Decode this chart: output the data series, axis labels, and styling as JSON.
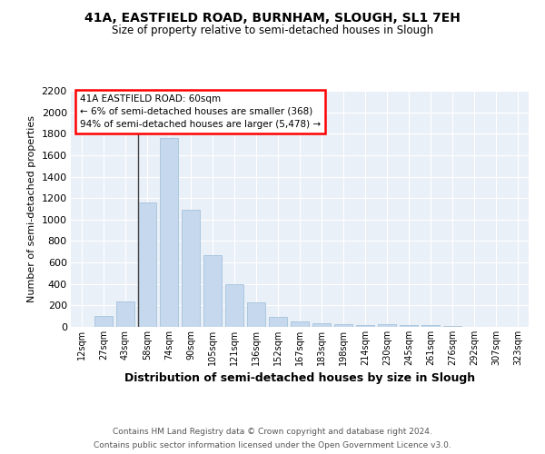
{
  "title1": "41A, EASTFIELD ROAD, BURNHAM, SLOUGH, SL1 7EH",
  "title2": "Size of property relative to semi-detached houses in Slough",
  "xlabel": "Distribution of semi-detached houses by size in Slough",
  "ylabel": "Number of semi-detached properties",
  "categories": [
    "12sqm",
    "27sqm",
    "43sqm",
    "58sqm",
    "74sqm",
    "90sqm",
    "105sqm",
    "121sqm",
    "136sqm",
    "152sqm",
    "167sqm",
    "183sqm",
    "198sqm",
    "214sqm",
    "230sqm",
    "245sqm",
    "261sqm",
    "276sqm",
    "292sqm",
    "307sqm",
    "323sqm"
  ],
  "values": [
    0,
    100,
    240,
    1160,
    1760,
    1090,
    665,
    400,
    225,
    90,
    55,
    35,
    25,
    20,
    25,
    20,
    15,
    5,
    2,
    1,
    0
  ],
  "bar_color": "#c5d8ed",
  "bar_edge_color": "#9bbdd6",
  "annotation_text_line1": "41A EASTFIELD ROAD: 60sqm",
  "annotation_text_line2": "← 6% of semi-detached houses are smaller (368)",
  "annotation_text_line3": "94% of semi-detached houses are larger (5,478) →",
  "ylim": [
    0,
    2200
  ],
  "yticks": [
    0,
    200,
    400,
    600,
    800,
    1000,
    1200,
    1400,
    1600,
    1800,
    2000,
    2200
  ],
  "bg_color": "#eaf0f8",
  "footer_line1": "Contains HM Land Registry data © Crown copyright and database right 2024.",
  "footer_line2": "Contains public sector information licensed under the Open Government Licence v3.0."
}
